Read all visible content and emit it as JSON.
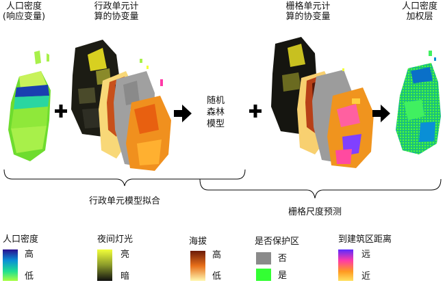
{
  "top_labels": {
    "pop_density_response": [
      "人口密度",
      "(响应变量)"
    ],
    "admin_covariates": [
      "行政单元计",
      "算的协变量"
    ],
    "grid_covariates": [
      "栅格单元计",
      "算的协变量"
    ],
    "pop_density_weight": [
      "人口密度",
      "加权层"
    ]
  },
  "model_label": [
    "随机",
    "森林",
    "模型"
  ],
  "brace_labels": {
    "admin_fit": "行政单元模型拟合",
    "grid_predict": "栅格尺度预测"
  },
  "legend": [
    {
      "title": "人口密度",
      "high": "高",
      "low": "低",
      "colors": [
        "#2a0e8f",
        "#0a8fd6",
        "#20e090",
        "#a8ff40"
      ]
    },
    {
      "title": "夜间灯光",
      "high": "亮",
      "low": "暗",
      "colors": [
        "#f2ff3a",
        "#8a9a2a",
        "#101010"
      ]
    },
    {
      "title": "海拔",
      "high": "高",
      "low": "低",
      "colors": [
        "#6b1a08",
        "#e8701a",
        "#fff7b0"
      ]
    },
    {
      "title": "是否保护区",
      "items": [
        {
          "label": "否",
          "color": "#8a8a8a"
        },
        {
          "label": "是",
          "color": "#33ff33"
        }
      ]
    },
    {
      "title": "到建筑区距离",
      "high": "远",
      "low": "近",
      "colors": [
        "#5a2bff",
        "#ff3aa8",
        "#ff9a20",
        "#ffe060"
      ]
    }
  ],
  "operators": {
    "plus": "+",
    "arrow": "→"
  }
}
